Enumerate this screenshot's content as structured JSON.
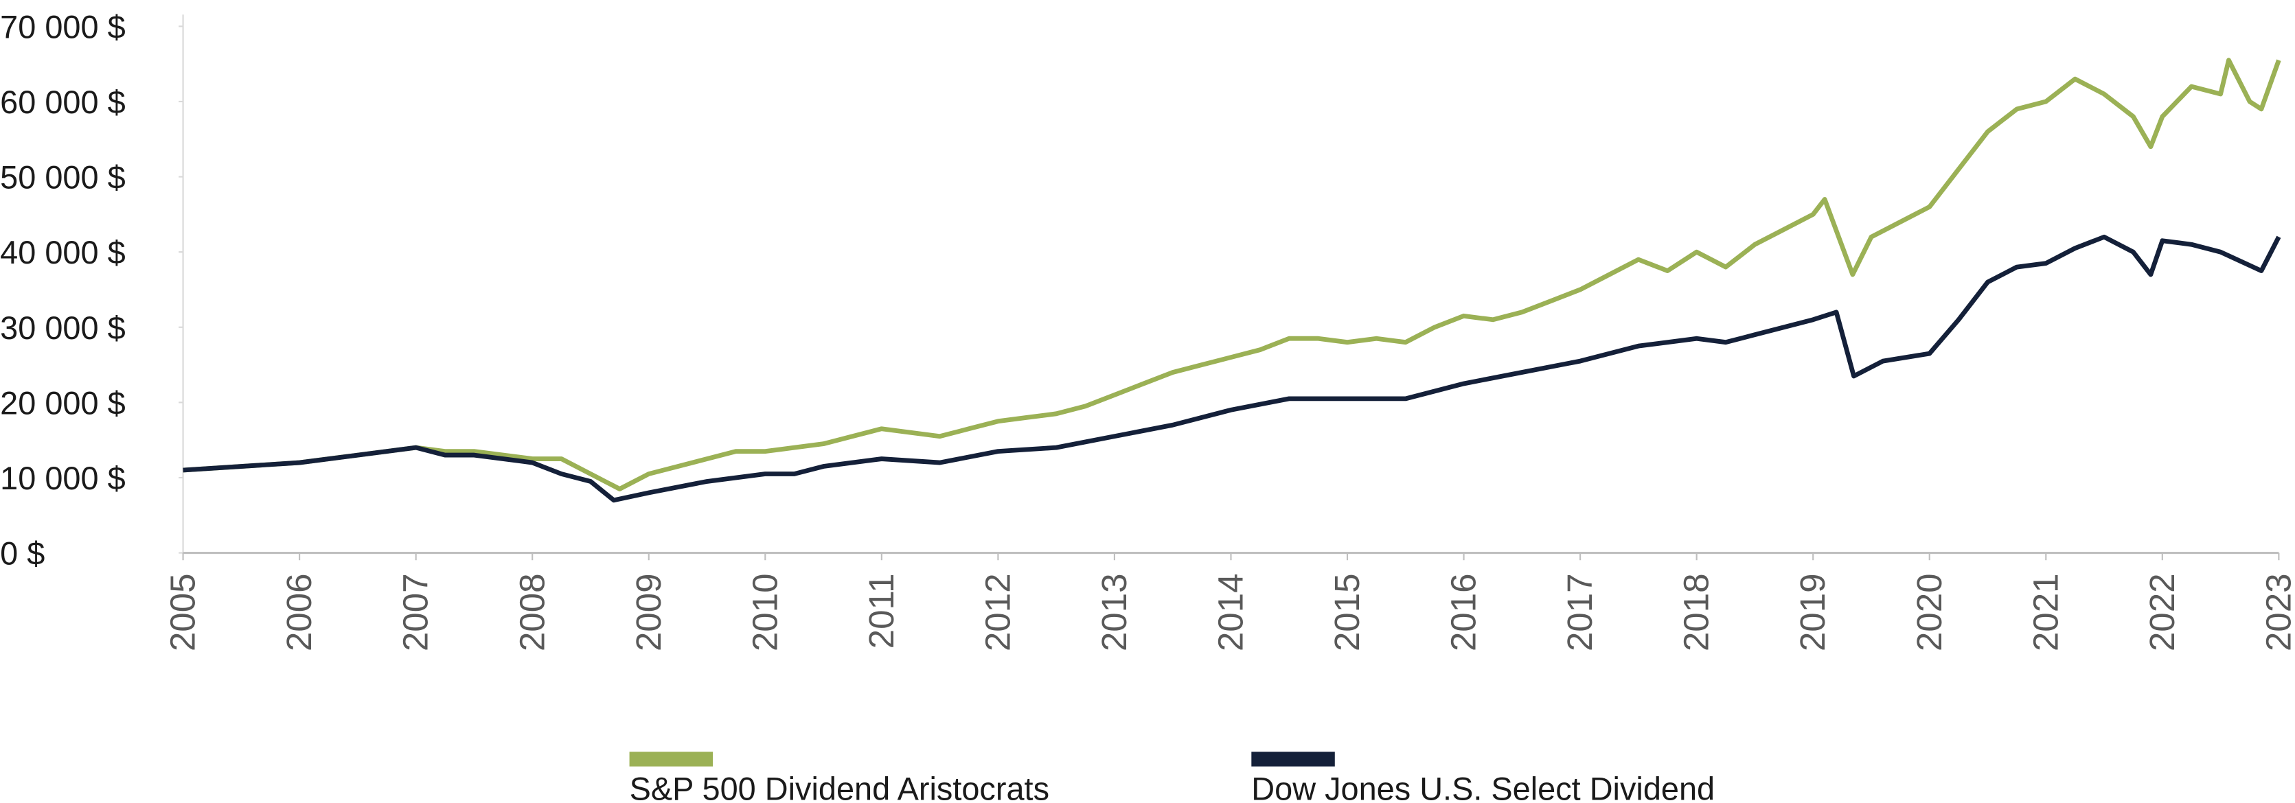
{
  "chart_data": {
    "type": "line",
    "xlim": [
      2005,
      2023
    ],
    "xticks": [
      2005,
      2006,
      2007,
      2008,
      2009,
      2010,
      2011,
      2012,
      2013,
      2014,
      2015,
      2016,
      2017,
      2018,
      2019,
      2020,
      2021,
      2022,
      2023
    ],
    "ylim": [
      0,
      70000
    ],
    "yticks": [
      {
        "value": 0,
        "label": "0 $"
      },
      {
        "value": 10000,
        "label": "10 000 $"
      },
      {
        "value": 20000,
        "label": "20 000 $"
      },
      {
        "value": 30000,
        "label": "30 000 $"
      },
      {
        "value": 40000,
        "label": "40 000 $"
      },
      {
        "value": 50000,
        "label": "50 000 $"
      },
      {
        "value": 60000,
        "label": "60 000 $"
      },
      {
        "value": 70000,
        "label": "70 000 $"
      }
    ],
    "grid": false,
    "legend": "bottom",
    "series": [
      {
        "name": "S&P 500 Dividend Aristocrats",
        "color": "#9bb155",
        "x": [
          2005,
          2005.5,
          2006,
          2006.5,
          2007,
          2007.25,
          2007.5,
          2008,
          2008.25,
          2008.5,
          2008.75,
          2009,
          2009.25,
          2009.5,
          2009.75,
          2010,
          2010.25,
          2010.5,
          2010.75,
          2011,
          2011.25,
          2011.5,
          2011.75,
          2012,
          2012.25,
          2012.5,
          2012.75,
          2013,
          2013.25,
          2013.5,
          2013.75,
          2014,
          2014.25,
          2014.5,
          2014.75,
          2015,
          2015.25,
          2015.5,
          2015.75,
          2016,
          2016.25,
          2016.5,
          2016.75,
          2017,
          2017.25,
          2017.5,
          2017.75,
          2018,
          2018.25,
          2018.5,
          2018.75,
          2019,
          2019.1,
          2019.34,
          2019.5,
          2019.75,
          2020,
          2020.25,
          2020.5,
          2020.75,
          2021,
          2021.25,
          2021.5,
          2021.75,
          2021.9,
          2022,
          2022.25,
          2022.5,
          2022.57,
          2022.75,
          2022.85,
          2023
        ],
        "values": [
          11000,
          11500,
          12000,
          13000,
          14000,
          13500,
          13500,
          12500,
          12500,
          10500,
          8500,
          10500,
          11500,
          12500,
          13500,
          13500,
          14000,
          14500,
          15500,
          16500,
          16000,
          15500,
          16500,
          17500,
          18000,
          18500,
          19500,
          21000,
          22500,
          24000,
          25000,
          26000,
          27000,
          28500,
          28500,
          28000,
          28500,
          28000,
          30000,
          31500,
          31000,
          32000,
          33500,
          35000,
          37000,
          39000,
          37500,
          40000,
          38000,
          41000,
          43000,
          45000,
          47000,
          37000,
          42000,
          44000,
          46000,
          51000,
          56000,
          59000,
          60000,
          63000,
          61000,
          58000,
          54000,
          58000,
          62000,
          61000,
          65500,
          60000,
          59000,
          65500
        ]
      },
      {
        "name": "Dow Jones U.S. Select Dividend",
        "color": "#142039",
        "x": [
          2005,
          2006,
          2007,
          2007.25,
          2007.5,
          2008,
          2008.25,
          2008.5,
          2008.7,
          2009,
          2009.5,
          2010,
          2010.25,
          2010.5,
          2011,
          2011.5,
          2012,
          2012.5,
          2013,
          2013.5,
          2014,
          2014.5,
          2015,
          2015.5,
          2016,
          2016.5,
          2017,
          2017.5,
          2018,
          2018.25,
          2018.5,
          2019,
          2019.2,
          2019.35,
          2019.6,
          2020,
          2020.25,
          2020.5,
          2020.75,
          2021,
          2021.25,
          2021.5,
          2021.75,
          2021.9,
          2022,
          2022.25,
          2022.5,
          2022.85,
          2023
        ],
        "values": [
          11000,
          12000,
          14000,
          13000,
          13000,
          12000,
          10500,
          9500,
          7000,
          8000,
          9500,
          10500,
          10500,
          11500,
          12500,
          12000,
          13500,
          14000,
          15500,
          17000,
          19000,
          20500,
          20500,
          20500,
          22500,
          24000,
          25500,
          27500,
          28500,
          28000,
          29000,
          31000,
          32000,
          23500,
          25500,
          26500,
          31000,
          36000,
          38000,
          38500,
          40500,
          42000,
          40000,
          37000,
          41500,
          41000,
          40000,
          37500,
          42000
        ]
      }
    ]
  }
}
